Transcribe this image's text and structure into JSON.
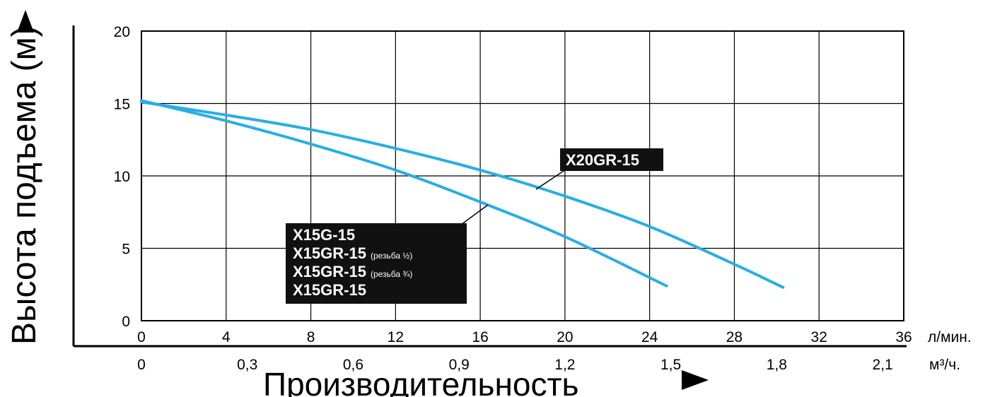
{
  "chart_data": {
    "type": "line",
    "ylabel": "Высота подъема (м)",
    "xlabel": "Производительность",
    "x_unit_primary": "л/мин.",
    "x_unit_secondary": "м³/ч.",
    "x_primary_ticks": [
      "0",
      "4",
      "8",
      "12",
      "16",
      "20",
      "24",
      "28",
      "32",
      "36"
    ],
    "x_secondary_ticks": [
      "0",
      "0,3",
      "0,6",
      "0,9",
      "1,2",
      "1,5",
      "1,8",
      "2,1"
    ],
    "y_ticks": [
      "0",
      "5",
      "10",
      "15",
      "20"
    ],
    "xlim": [
      0,
      36
    ],
    "ylim": [
      0,
      20
    ],
    "grid": true,
    "series": [
      {
        "name": "X20GR-15",
        "color": "#29aee4",
        "x": [
          0,
          4,
          8,
          12,
          16,
          20,
          24,
          28,
          30.3
        ],
        "y": [
          15.1,
          14.2,
          13.2,
          11.9,
          10.4,
          8.6,
          6.5,
          3.9,
          2.3
        ]
      },
      {
        "name": "X15G-15 / X15GR-15",
        "color": "#29aee4",
        "x": [
          0,
          4,
          8,
          12,
          16,
          20,
          24.8
        ],
        "y": [
          15.2,
          13.8,
          12.2,
          10.4,
          8.2,
          5.8,
          2.4
        ]
      }
    ],
    "labels": [
      {
        "lines": [
          {
            "main": "X20GR-15",
            "small": ""
          }
        ]
      },
      {
        "lines": [
          {
            "main": "X15G-15",
            "small": ""
          },
          {
            "main": "X15GR-15",
            "small": "(резьба ½)"
          },
          {
            "main": "X15GR-15",
            "small": "(резьба ¾)"
          },
          {
            "main": "X15GR-15",
            "small": ""
          }
        ]
      }
    ]
  }
}
